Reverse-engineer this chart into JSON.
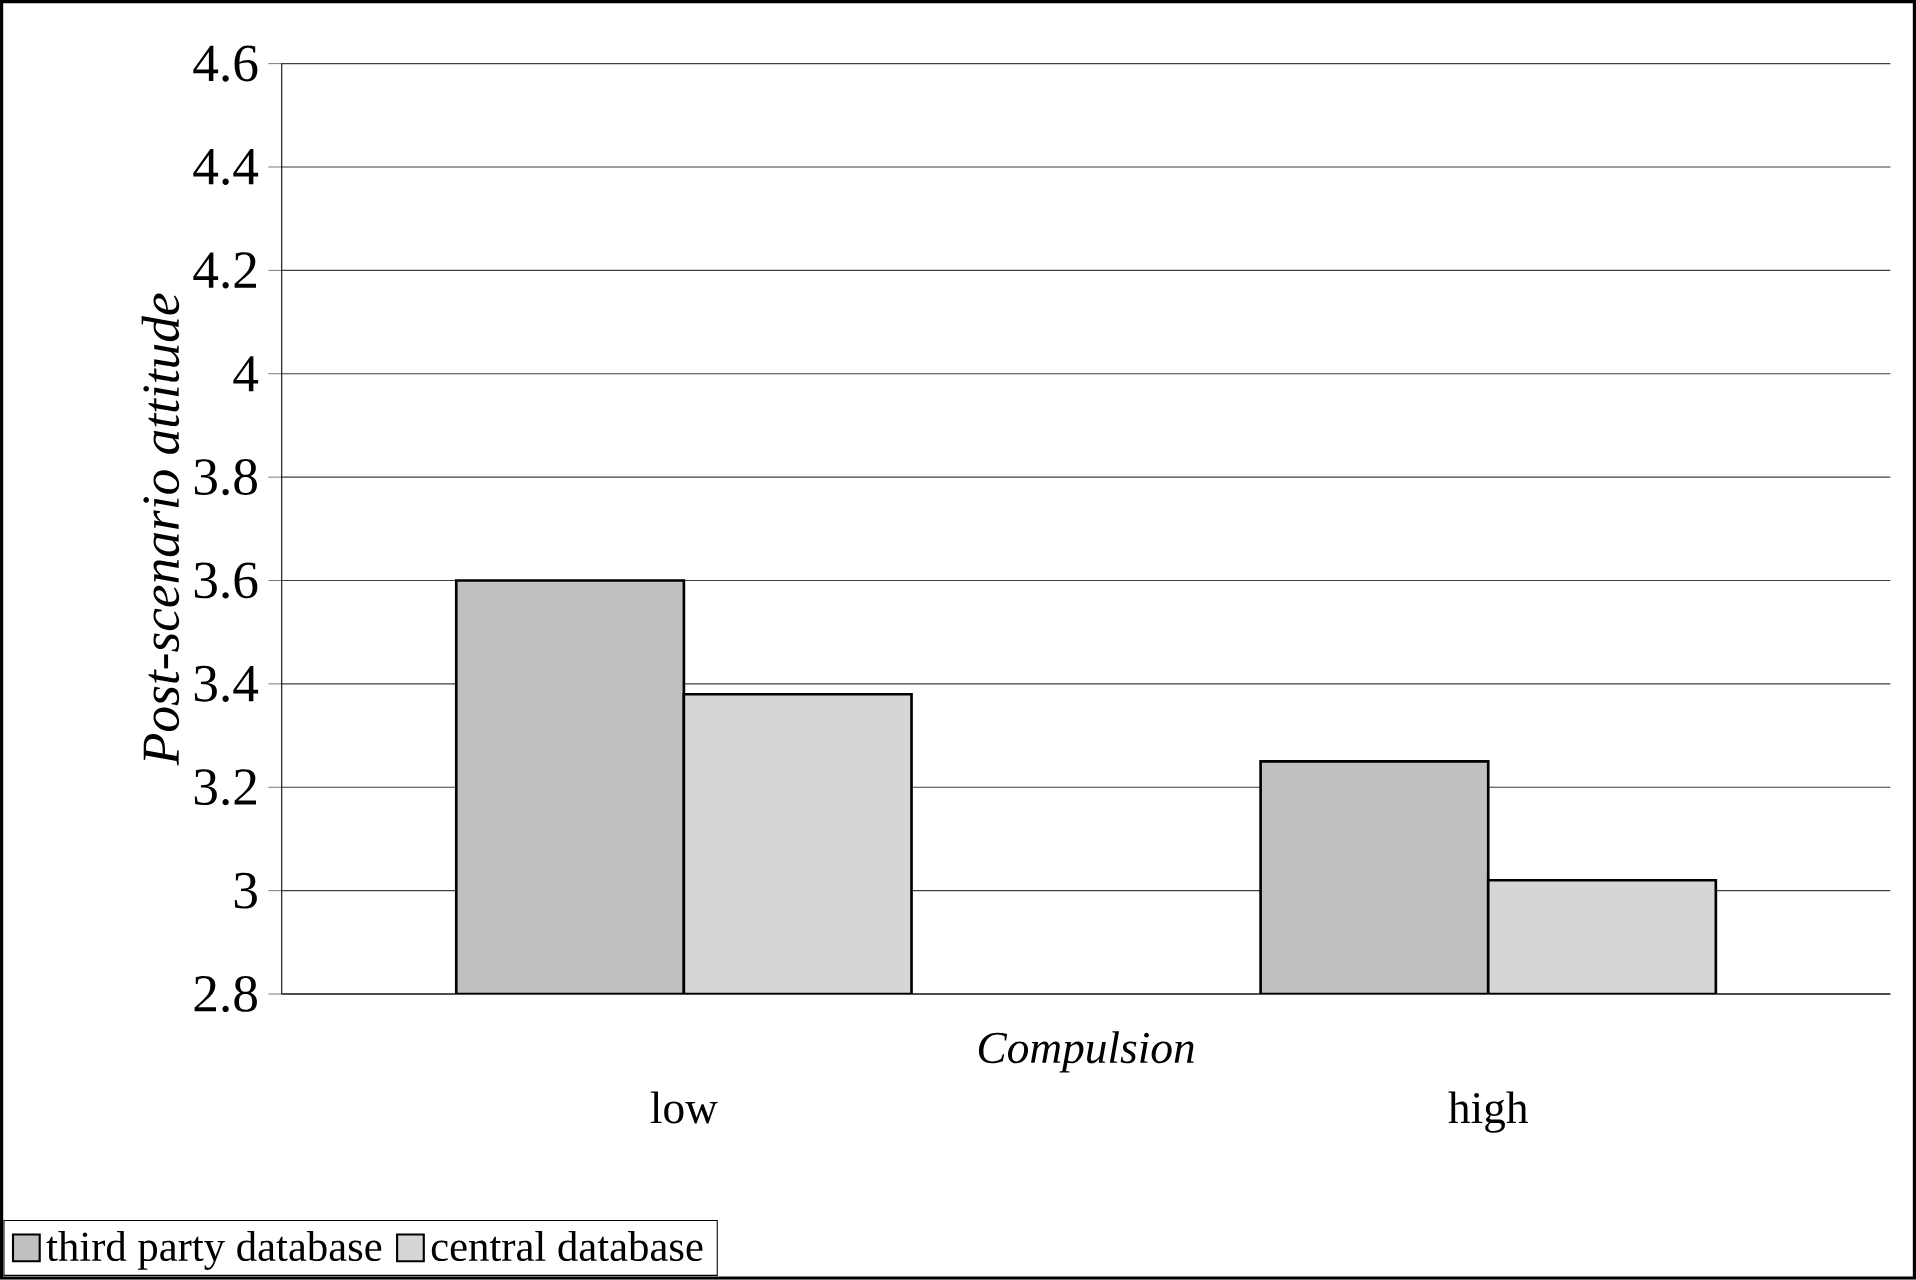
{
  "chart_data": {
    "type": "bar",
    "ylabel": "Post-scenario attitude",
    "xlabel": "Compulsion",
    "categories": [
      "low",
      "high"
    ],
    "series": [
      {
        "name": "third party database",
        "color": "#c0c0c0",
        "values": [
          3.6,
          3.25
        ]
      },
      {
        "name": "central database",
        "color": "#d6d6d6",
        "values": [
          3.38,
          3.02
        ]
      }
    ],
    "ylim": [
      2.8,
      4.6
    ],
    "yticks": [
      2.8,
      3,
      3.2,
      3.4,
      3.6,
      3.8,
      4,
      4.2,
      4.4,
      4.6
    ],
    "grid": "y",
    "legend": "bottom left"
  }
}
